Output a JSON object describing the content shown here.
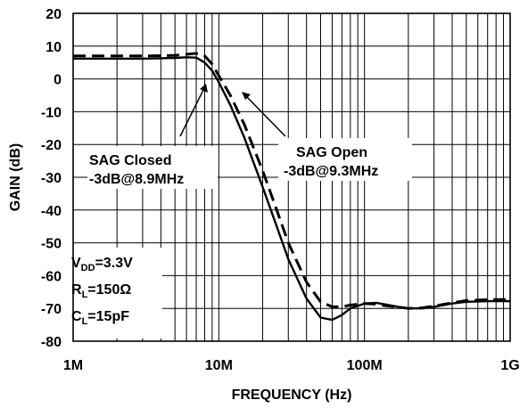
{
  "chart_data": {
    "type": "line",
    "xlabel": "FREQUENCY (Hz)",
    "ylabel": "GAIN (dB)",
    "x_scale": "log",
    "xlim": [
      1000000,
      1000000000
    ],
    "ylim": [
      -80,
      20
    ],
    "x_ticks": [
      {
        "value": 1000000,
        "label": "1M"
      },
      {
        "value": 10000000,
        "label": "10M"
      },
      {
        "value": 100000000,
        "label": "100M"
      },
      {
        "value": 1000000000,
        "label": "1G"
      }
    ],
    "y_ticks": [
      20,
      10,
      0,
      -10,
      -20,
      -30,
      -40,
      -50,
      -60,
      -70,
      -80
    ],
    "grid": true,
    "series": [
      {
        "name": "SAG Closed",
        "style": "solid",
        "color": "#000000",
        "x": [
          1000000,
          2000000,
          3000000,
          4000000,
          5000000,
          6000000,
          7000000,
          8000000,
          9000000,
          10000000,
          12000000,
          15000000,
          20000000,
          25000000,
          30000000,
          40000000,
          50000000,
          60000000,
          70000000,
          80000000,
          100000000,
          120000000,
          140000000,
          170000000,
          200000000,
          250000000,
          300000000,
          400000000,
          500000000,
          700000000,
          1000000000
        ],
        "y": [
          6.2,
          6.2,
          6.2,
          6.3,
          6.4,
          6.6,
          6.5,
          5,
          2.5,
          -1,
          -8,
          -18,
          -33,
          -45,
          -55,
          -67,
          -72.8,
          -73.5,
          -72,
          -70,
          -68.5,
          -68.3,
          -68.8,
          -69.5,
          -70,
          -70,
          -69.5,
          -68.5,
          -68,
          -67.8,
          -67.8
        ]
      },
      {
        "name": "SAG Open",
        "style": "dashed",
        "color": "#000000",
        "x": [
          1000000,
          2000000,
          3000000,
          4000000,
          5000000,
          6000000,
          7000000,
          8000000,
          9000000,
          10000000,
          12000000,
          15000000,
          20000000,
          25000000,
          30000000,
          40000000,
          50000000,
          60000000,
          70000000,
          80000000,
          100000000,
          120000000,
          140000000,
          170000000,
          200000000,
          250000000,
          300000000,
          400000000,
          500000000,
          700000000,
          1000000000
        ],
        "y": [
          7,
          7,
          7,
          7.1,
          7.2,
          7.5,
          7.8,
          7,
          4.5,
          1,
          -5,
          -14,
          -28,
          -40,
          -50,
          -62,
          -68,
          -69.5,
          -69.5,
          -69,
          -68.5,
          -68.7,
          -69.2,
          -69.6,
          -70,
          -69.8,
          -69.3,
          -68.3,
          -67.6,
          -67.3,
          -67.3
        ]
      }
    ],
    "annotations": {
      "sag_closed_line1": "SAG Closed",
      "sag_closed_line2": "-3dB@8.9MHz",
      "sag_open_line1": "SAG Open",
      "sag_open_line2": "-3dB@9.3MHz",
      "vdd_main": "V",
      "vdd_sub": "DD",
      "vdd_value": "=3.3V",
      "rl_main": "R",
      "rl_sub": "L",
      "rl_value": "=150Ω",
      "cl_main": "C",
      "cl_sub": "L",
      "cl_value": "=15pF"
    }
  }
}
